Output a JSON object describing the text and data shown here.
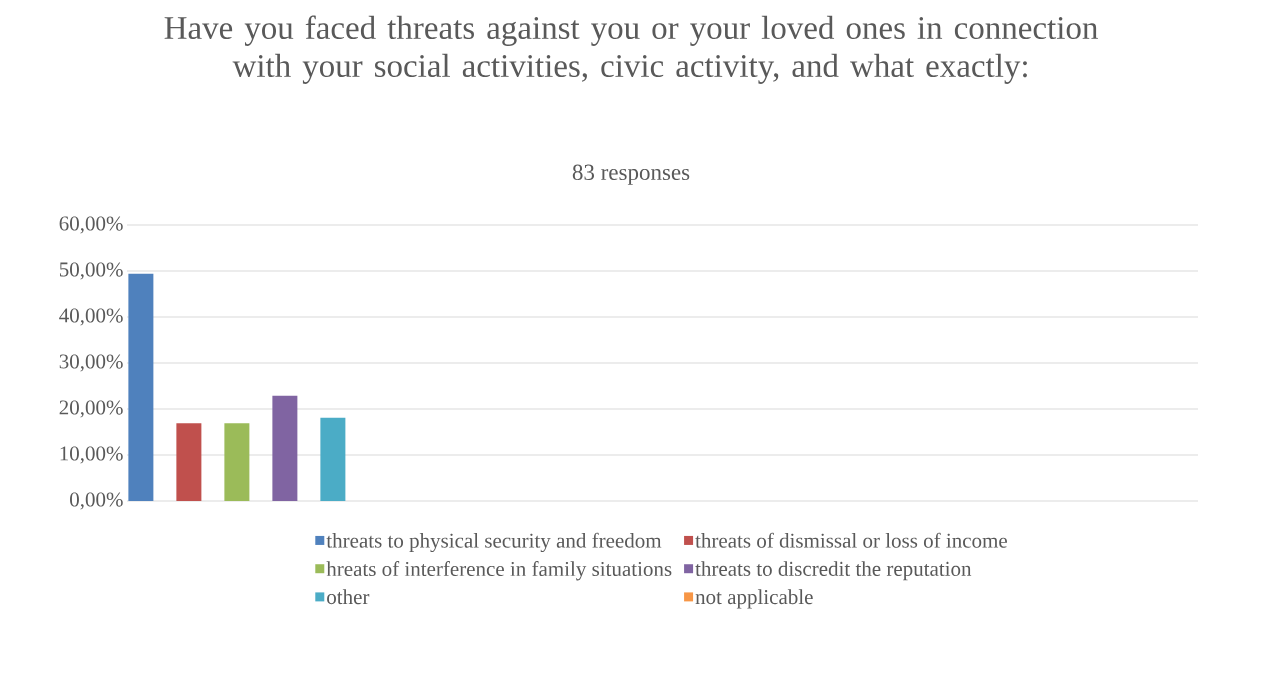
{
  "chart_data": {
    "type": "bar",
    "title": "Have you faced threats against you or your loved ones in connection with your social activities, civic activity, and what exactly:",
    "subtitle": "83 responses",
    "categories": [
      null,
      null,
      null,
      null
    ],
    "series": [
      {
        "name": "threats to physical security and freedom",
        "color": "#4f81bd",
        "values": [
          49.4,
          null,
          null,
          null
        ]
      },
      {
        "name": "threats of dismissal or loss of income",
        "color": "#c0504d",
        "values": [
          16.9,
          null,
          null,
          null
        ]
      },
      {
        "name": "hreats of interference in family situations",
        "color": "#9bbb59",
        "values": [
          16.9,
          null,
          null,
          null
        ]
      },
      {
        "name": "threats to discredit the reputation",
        "color": "#8064a2",
        "values": [
          22.9,
          null,
          null,
          null
        ]
      },
      {
        "name": "other",
        "color": "#4bacc6",
        "values": [
          18.1,
          null,
          null,
          null
        ]
      },
      {
        "name": "not applicable",
        "color": "#f79646",
        "values": [
          0,
          null,
          null,
          null
        ]
      }
    ],
    "ylim": [
      0,
      60
    ],
    "yticks": [
      {
        "value": 0,
        "label": "0,00%"
      },
      {
        "value": 10,
        "label": "10,00%"
      },
      {
        "value": 20,
        "label": "20,00%"
      },
      {
        "value": 30,
        "label": "30,00%"
      },
      {
        "value": 40,
        "label": "40,00%"
      },
      {
        "value": 50,
        "label": "50,00%"
      },
      {
        "value": 60,
        "label": "60,00%"
      }
    ],
    "grid": "y",
    "legend": "bottom"
  }
}
